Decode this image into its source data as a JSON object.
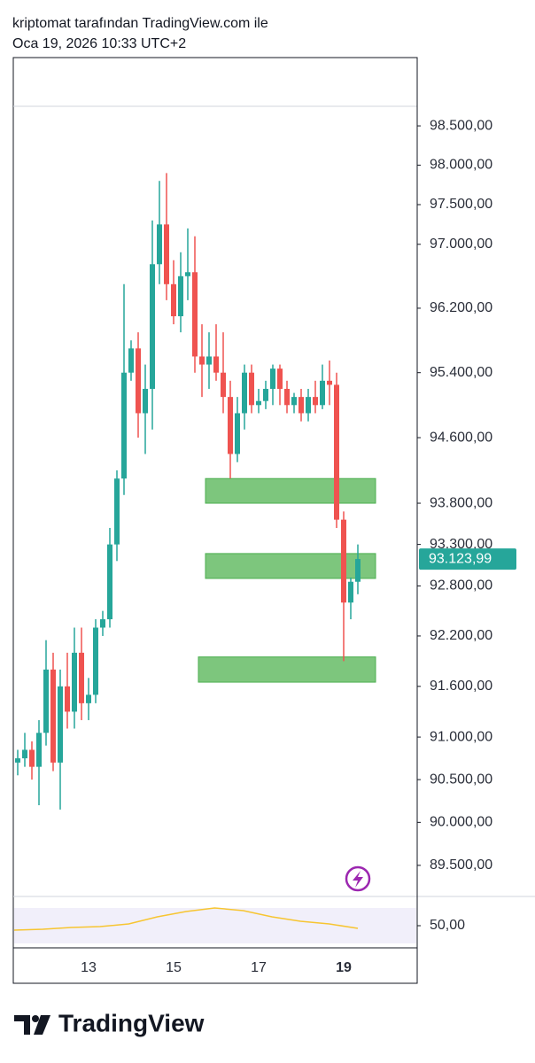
{
  "header": {
    "line1": "kriptomat tarafından TradingView.com ile",
    "line2": "Oca 19, 2026 10:33 UTC+2"
  },
  "footer": {
    "brand": "TradingView"
  },
  "chart_data": {
    "type": "candlestick",
    "log": true,
    "up_color": "#26a69a",
    "down_color": "#ef5350",
    "ylim": [
      89140,
      98750
    ],
    "yticks": [
      {
        "value": 98500,
        "label": "98.500,00"
      },
      {
        "value": 98000,
        "label": "98.000,00"
      },
      {
        "value": 97500,
        "label": "97.500,00"
      },
      {
        "value": 97000,
        "label": "97.000,00"
      },
      {
        "value": 96200,
        "label": "96.200,00"
      },
      {
        "value": 95400,
        "label": "95.400,00"
      },
      {
        "value": 94600,
        "label": "94.600,00"
      },
      {
        "value": 93800,
        "label": "93.800,00"
      },
      {
        "value": 93300,
        "label": "93.300,00"
      },
      {
        "value": 92800,
        "label": "92.800,00"
      },
      {
        "value": 92200,
        "label": "92.200,00"
      },
      {
        "value": 91600,
        "label": "91.600,00"
      },
      {
        "value": 91000,
        "label": "91.000,00"
      },
      {
        "value": 90500,
        "label": "90.500,00"
      },
      {
        "value": 90000,
        "label": "90.000,00"
      },
      {
        "value": 89500,
        "label": "89.500,00"
      }
    ],
    "categories": [
      null,
      null,
      null,
      null,
      null,
      null,
      null,
      null,
      null,
      null,
      "13",
      null,
      null,
      null,
      null,
      null,
      null,
      null,
      null,
      null,
      null,
      null,
      "15",
      null,
      null,
      null,
      null,
      null,
      null,
      null,
      null,
      null,
      null,
      null,
      "17",
      null,
      null,
      null,
      null,
      null,
      null,
      null,
      null,
      null,
      null,
      null,
      "19",
      null,
      null
    ],
    "open": [
      90700,
      90750,
      90850,
      90650,
      91050,
      91800,
      90700,
      91600,
      91300,
      92000,
      91400,
      91500,
      92300,
      92400,
      93300,
      94100,
      95400,
      95700,
      94900,
      95200,
      96750,
      97250,
      96500,
      96100,
      96600,
      96650,
      95600,
      95500,
      95600,
      95400,
      95100,
      94400,
      94900,
      95400,
      95000,
      95050,
      95200,
      95450,
      95200,
      95000,
      95100,
      94900,
      95100,
      95000,
      95300,
      95250,
      93600,
      92600,
      92850
    ],
    "high": [
      90850,
      91050,
      90950,
      91200,
      92150,
      92000,
      91800,
      92000,
      92300,
      92300,
      91700,
      92400,
      92500,
      93500,
      94200,
      96500,
      95800,
      95900,
      95500,
      97300,
      97800,
      97900,
      96800,
      96900,
      97200,
      97100,
      96000,
      95900,
      96000,
      95900,
      95300,
      95100,
      95500,
      95500,
      95200,
      95300,
      95500,
      95500,
      95300,
      95150,
      95200,
      95200,
      95300,
      95500,
      95550,
      95400,
      93700,
      92900,
      93300
    ],
    "low": [
      90550,
      90650,
      90500,
      90200,
      90900,
      90600,
      90150,
      91100,
      91100,
      91200,
      91200,
      91400,
      92200,
      92300,
      93100,
      93900,
      95300,
      94600,
      94400,
      94700,
      96500,
      96300,
      96000,
      95900,
      96300,
      95400,
      95100,
      95200,
      95300,
      94900,
      94100,
      94300,
      94700,
      94900,
      94900,
      94950,
      95000,
      95000,
      94900,
      94900,
      94800,
      94800,
      94900,
      94950,
      95000,
      93500,
      91900,
      92400,
      92700
    ],
    "close": [
      90750,
      90850,
      90650,
      91050,
      91800,
      90700,
      91600,
      91300,
      92000,
      91400,
      91500,
      92300,
      92400,
      93300,
      94100,
      95400,
      95700,
      94900,
      95200,
      96750,
      97250,
      96500,
      96100,
      96600,
      96650,
      95600,
      95500,
      95600,
      95400,
      95100,
      94400,
      94900,
      95400,
      95000,
      95050,
      95200,
      95450,
      95200,
      95000,
      95100,
      94900,
      95100,
      95000,
      95300,
      95250,
      93600,
      92600,
      92850,
      93123.99
    ],
    "last_price": {
      "value": 93123.99,
      "label": "93.123,99",
      "color": "#26a69a"
    },
    "zones": [
      {
        "low": 93800,
        "high": 94100,
        "color": "#7dc67d",
        "from": 27,
        "to": 51
      },
      {
        "low": 92890,
        "high": 93190,
        "color": "#7dc67d",
        "from": 27,
        "to": 51
      },
      {
        "low": 91650,
        "high": 91950,
        "color": "#7dc67d",
        "from": 26,
        "to": 51
      }
    ],
    "indicator": {
      "color": "#f7c531",
      "ylim": [
        30,
        70
      ],
      "yticks": [
        {
          "value": 50,
          "label": "50,00"
        }
      ],
      "values": [
        45,
        46,
        48,
        49,
        52,
        60,
        66,
        70,
        67,
        60,
        55,
        52,
        47
      ]
    }
  }
}
